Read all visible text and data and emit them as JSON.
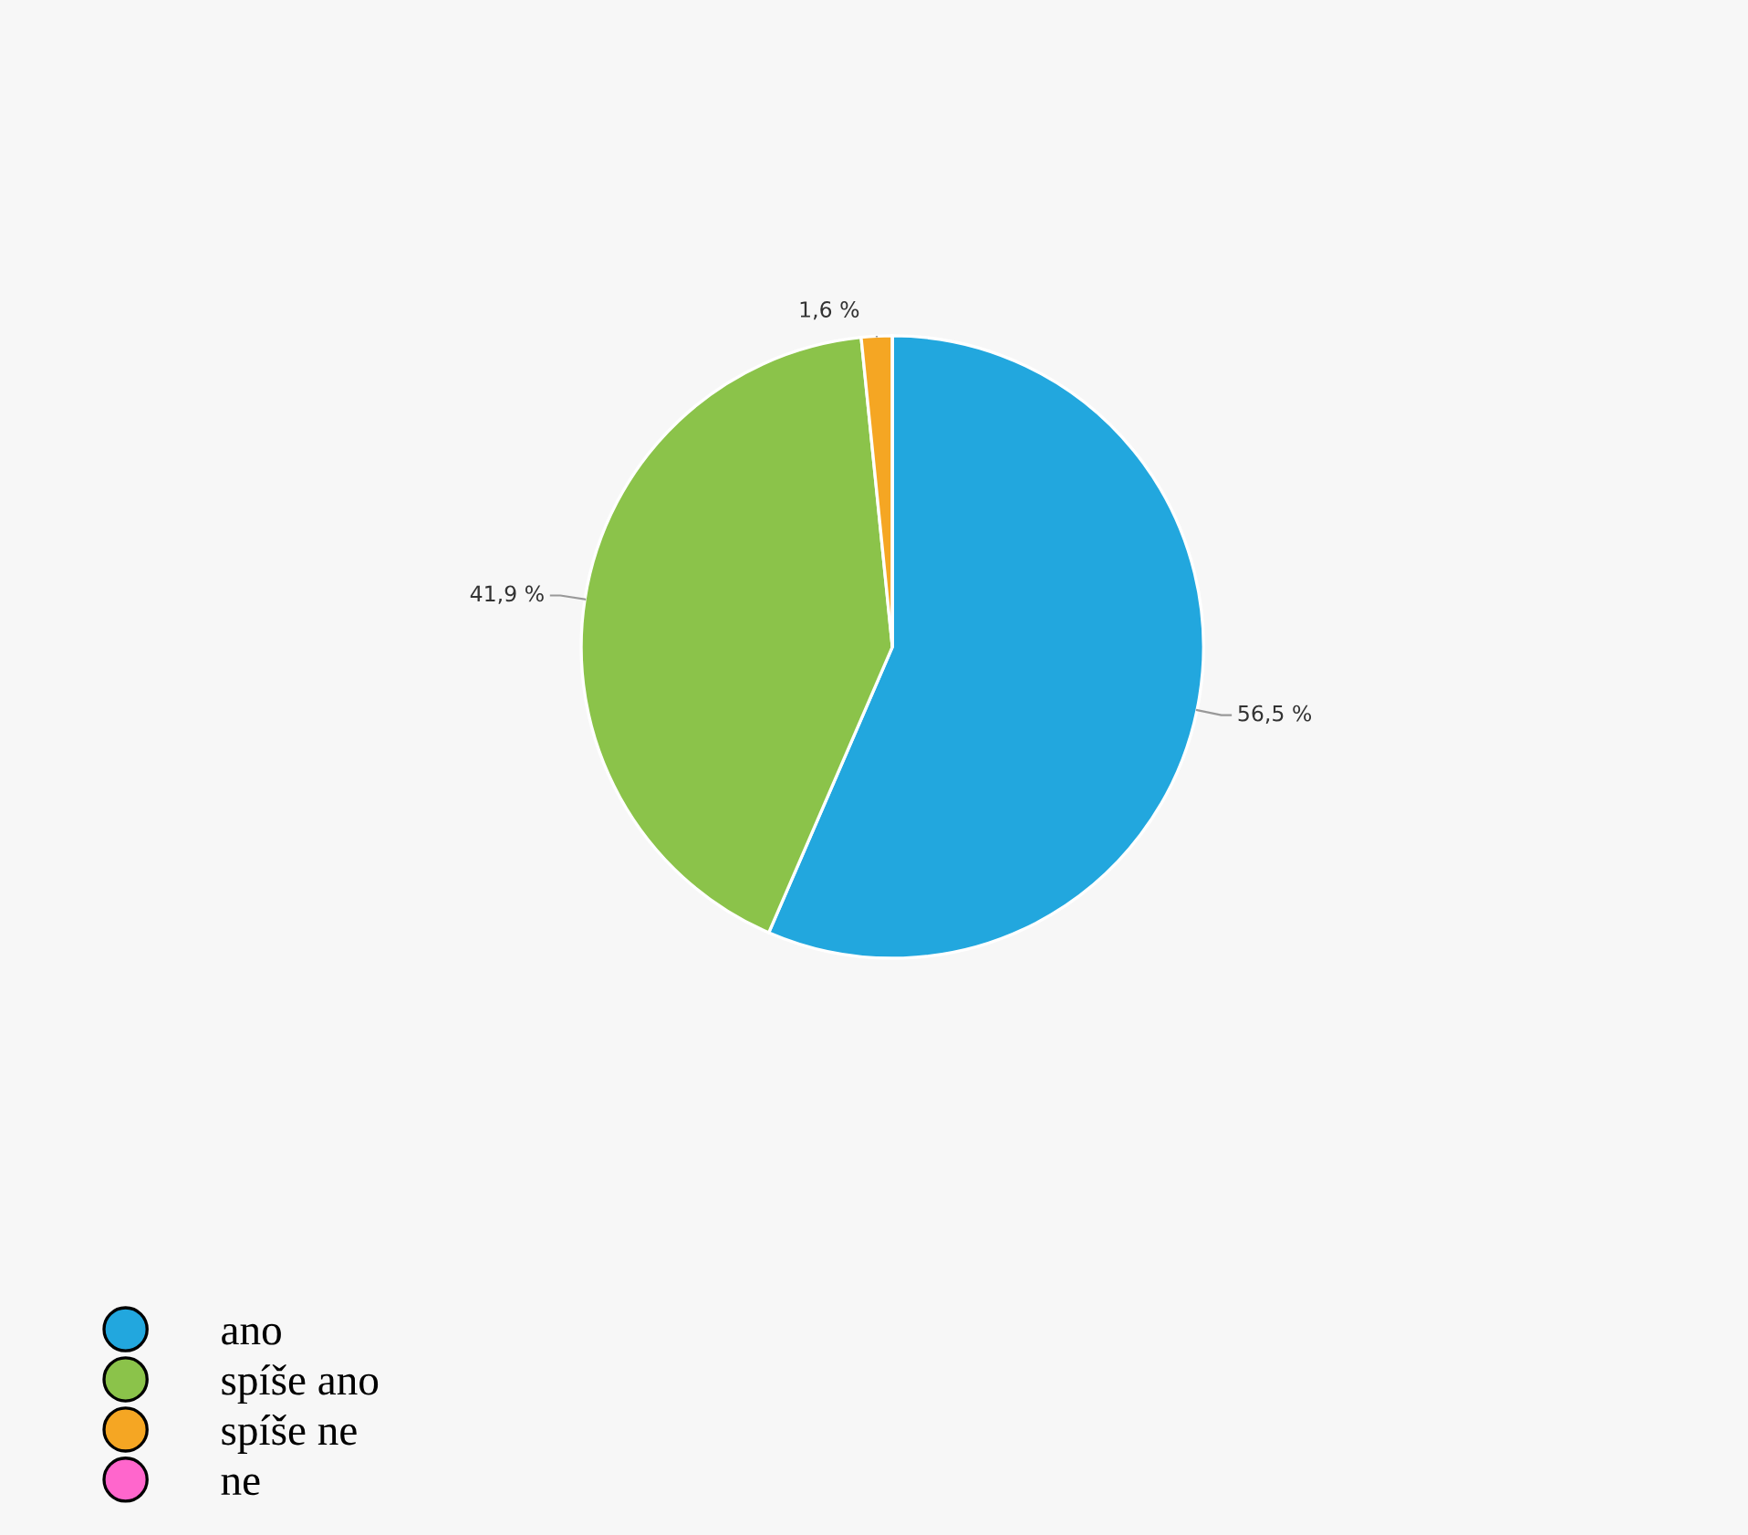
{
  "chart_data": {
    "type": "pie",
    "categories": [
      "ano",
      "spíše ano",
      "spíše ne",
      "ne"
    ],
    "values": [
      56.5,
      41.9,
      1.6,
      0
    ],
    "colors": [
      "#22a7de",
      "#8bc34a",
      "#f5a623",
      "#ff66cc"
    ],
    "value_labels": [
      "56,5 %",
      "41,9 %",
      "1,6 %",
      null
    ],
    "legend": "bottom left"
  }
}
